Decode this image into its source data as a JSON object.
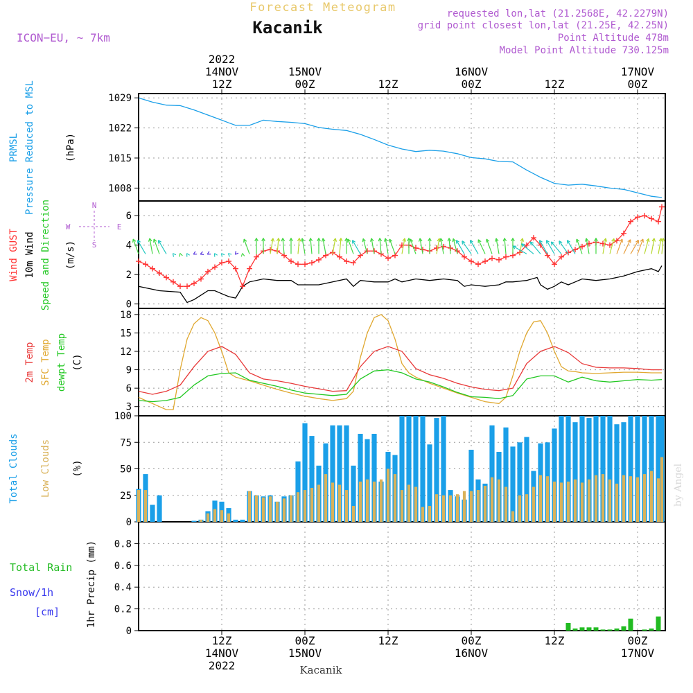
{
  "header": {
    "app_title": "Forecast Meteogram",
    "location": "Kacanik",
    "model": "ICON−EU, ~ 7km",
    "requested": "requested lon,lat (21.2568E, 42.2279N)",
    "grid_point": "grid point closest lon,lat (21.25E, 42.25N)",
    "point_altitude": "Point Altitude 478m",
    "model_altitude": "Model Point Altitude 730.125m",
    "footer_location": "Kacanik",
    "watermark": "by Angel"
  },
  "colors": {
    "pressure": "#1a9fe8",
    "gust": "#ff3333",
    "wind10m": "#000000",
    "temp2m": "#e83838",
    "sfc_temp": "#e0a830",
    "dewpt": "#22c822",
    "total_clouds": "#1a9fe8",
    "low_clouds": "#d9b25a",
    "rain": "#22bb22",
    "snow": "#3a3aee",
    "model_label": "#b05ad0"
  },
  "time_axis": {
    "top_labels": [
      {
        "hour": 12,
        "lines": [
          "2022",
          "14NOV",
          "12Z"
        ]
      },
      {
        "hour": 24,
        "lines": [
          "15NOV",
          "00Z"
        ]
      },
      {
        "hour": 36,
        "lines": [
          "12Z"
        ]
      },
      {
        "hour": 48,
        "lines": [
          "16NOV",
          "00Z"
        ]
      },
      {
        "hour": 60,
        "lines": [
          "12Z"
        ]
      },
      {
        "hour": 72,
        "lines": [
          "17NOV",
          "00Z"
        ]
      }
    ],
    "bottom_labels": [
      {
        "hour": 12,
        "lines": [
          "12Z",
          "14NOV",
          "2022"
        ]
      },
      {
        "hour": 24,
        "lines": [
          "00Z",
          "15NOV"
        ]
      },
      {
        "hour": 36,
        "lines": [
          "12Z"
        ]
      },
      {
        "hour": 48,
        "lines": [
          "00Z",
          "16NOV"
        ]
      },
      {
        "hour": 60,
        "lines": [
          "12Z"
        ]
      },
      {
        "hour": 72,
        "lines": [
          "00Z",
          "17NOV"
        ]
      }
    ]
  },
  "panels": {
    "pressure": {
      "ylabel_lines": [
        "PRMSL",
        "Pressure Reduced to MSL"
      ],
      "unit": "(hPa)",
      "ylim": [
        1005,
        1030
      ],
      "ticks": [
        1008,
        1015,
        1022,
        1029
      ]
    },
    "wind": {
      "ylabel_lines": [
        "Wind GUST",
        "10m Wind",
        "Speed and Direction"
      ],
      "unit": "(m/s)",
      "ylim": [
        -0.3,
        7
      ],
      "ticks": [
        0,
        2,
        4,
        6
      ],
      "compass": {
        "n": "N",
        "s": "S",
        "w": "W",
        "e": "E"
      }
    },
    "temp": {
      "ylabel_lines": [
        "2m Temp",
        "SFC Temp",
        "dewpt Temp"
      ],
      "unit": "(C)",
      "ylim": [
        1.5,
        19
      ],
      "ticks": [
        3,
        6,
        9,
        12,
        15,
        18
      ]
    },
    "clouds": {
      "ylabel_lines": [
        "Total Clouds",
        "Low Clouds"
      ],
      "unit": "(%)",
      "ylim": [
        0,
        100
      ],
      "ticks": [
        0,
        25,
        50,
        75,
        100
      ],
      "tick_labels": [
        "0",
        "25",
        "50",
        "75",
        "100"
      ]
    },
    "precip": {
      "ylabel_lines": [
        "Total Rain",
        "Snow/1h",
        "[cm]"
      ],
      "unit": "1hr Precip (mm)",
      "ylim": [
        0,
        1.0
      ],
      "ticks": [
        0,
        0.2,
        0.4,
        0.6,
        0.8
      ],
      "tick_labels": [
        "0",
        "0.2",
        "0.4",
        "0.6",
        "0.8"
      ]
    }
  },
  "chart_data": {
    "type": "line",
    "x_unit": "hours from 14NOV 00Z",
    "xlim": [
      0,
      76
    ],
    "pressure": {
      "x": [
        0,
        2,
        4,
        6,
        8,
        10,
        12,
        13,
        14,
        16,
        18,
        20,
        22,
        24,
        26,
        28,
        30,
        32,
        34,
        36,
        38,
        40,
        42,
        44,
        46,
        48,
        50,
        52,
        54,
        56,
        58,
        60,
        62,
        64,
        66,
        68,
        70,
        72,
        74,
        75.5
      ],
      "y": [
        1029,
        1028,
        1027.3,
        1027.2,
        1026.2,
        1025,
        1023.8,
        1023.2,
        1022.6,
        1022.6,
        1023.8,
        1023.5,
        1023.3,
        1023,
        1022.1,
        1021.7,
        1021.4,
        1020.5,
        1019.3,
        1018,
        1017.1,
        1016.5,
        1016.8,
        1016.6,
        1016,
        1015.1,
        1014.8,
        1014.2,
        1014.1,
        1012.2,
        1010.5,
        1009.1,
        1008.7,
        1008.9,
        1008.5,
        1008,
        1007.7,
        1006.9,
        1006.1,
        1005.8
      ]
    },
    "wind_10m": {
      "x": [
        0,
        3,
        6,
        7,
        8,
        9,
        10,
        11,
        12,
        13,
        14,
        15,
        16,
        18,
        20,
        22,
        23,
        24,
        26,
        28,
        30,
        31,
        32,
        34,
        36,
        37,
        38,
        40,
        42,
        44,
        46,
        47,
        48,
        50,
        52,
        53,
        54,
        56,
        57.5,
        58,
        59,
        60,
        61,
        62,
        63,
        64,
        66,
        68,
        70,
        72,
        74,
        75,
        75.5
      ],
      "y": [
        1.2,
        0.9,
        0.8,
        0.1,
        0.3,
        0.6,
        0.9,
        0.9,
        0.7,
        0.5,
        0.4,
        1.2,
        1.5,
        1.7,
        1.6,
        1.6,
        1.3,
        1.3,
        1.3,
        1.5,
        1.7,
        1.2,
        1.6,
        1.5,
        1.5,
        1.7,
        1.5,
        1.7,
        1.6,
        1.7,
        1.6,
        1.2,
        1.3,
        1.2,
        1.3,
        1.5,
        1.5,
        1.6,
        1.8,
        1.3,
        1.0,
        1.2,
        1.5,
        1.3,
        1.5,
        1.7,
        1.6,
        1.7,
        1.9,
        2.2,
        2.4,
        2.2,
        2.6
      ]
    },
    "wind_gust": {
      "x": [
        0,
        1,
        2,
        3,
        4,
        5,
        6,
        7,
        8,
        9,
        10,
        11,
        12,
        13,
        14,
        15,
        16,
        17,
        18,
        19,
        20,
        21,
        22,
        23,
        24,
        25,
        26,
        27,
        28,
        29,
        30,
        31,
        32,
        33,
        34,
        35,
        36,
        37,
        38,
        39,
        40,
        41,
        42,
        43,
        44,
        45,
        46,
        47,
        48,
        49,
        50,
        51,
        52,
        53,
        54,
        55,
        56,
        57,
        58,
        59,
        60,
        61,
        62,
        63,
        64,
        65,
        66,
        67,
        68,
        69,
        70,
        71,
        72,
        73,
        74,
        75,
        75.5
      ],
      "y": [
        2.9,
        2.7,
        2.4,
        2.1,
        1.8,
        1.5,
        1.2,
        1.2,
        1.4,
        1.7,
        2.2,
        2.5,
        2.8,
        2.9,
        2.4,
        1.2,
        2.4,
        3.2,
        3.6,
        3.7,
        3.6,
        3.3,
        2.9,
        2.7,
        2.7,
        2.8,
        3.0,
        3.3,
        3.5,
        3.2,
        2.9,
        2.8,
        3.3,
        3.6,
        3.6,
        3.4,
        3.1,
        3.3,
        4.0,
        4.0,
        3.8,
        3.7,
        3.6,
        3.8,
        3.9,
        3.8,
        3.6,
        3.2,
        2.9,
        2.7,
        2.9,
        3.1,
        3.0,
        3.2,
        3.3,
        3.5,
        4.0,
        4.5,
        4.0,
        3.3,
        2.7,
        3.2,
        3.5,
        3.7,
        3.9,
        4.1,
        4.2,
        4.1,
        4.0,
        4.3,
        4.8,
        5.6,
        5.9,
        6.0,
        5.8,
        5.6,
        6.6
      ]
    },
    "wind_direction_arrows": {
      "x": [
        0,
        1,
        2,
        3,
        4,
        5,
        6,
        7,
        8,
        9,
        10,
        11,
        12,
        13,
        14,
        15,
        16,
        17,
        18,
        19,
        20,
        21,
        22,
        23,
        24,
        25,
        26,
        27,
        28,
        29,
        30,
        31,
        32,
        33,
        34,
        35,
        36,
        37,
        38,
        39,
        40,
        41,
        42,
        43,
        44,
        45,
        46,
        47,
        48,
        49,
        50,
        51,
        52,
        53,
        54,
        55,
        56,
        57,
        58,
        59,
        60,
        61,
        62,
        63,
        64,
        65,
        66,
        67,
        68,
        69,
        70,
        71,
        72,
        73,
        74,
        75,
        75.5
      ],
      "dir_deg": [
        340,
        330,
        350,
        340,
        330,
        320,
        340,
        330,
        240,
        250,
        240,
        330,
        320,
        310,
        220,
        350,
        340,
        0,
        0,
        10,
        5,
        355,
        0,
        5,
        350,
        355,
        0,
        350,
        10,
        5,
        0,
        340,
        330,
        345,
        350,
        355,
        350,
        340,
        10,
        0,
        340,
        350,
        0,
        10,
        350,
        355,
        345,
        330,
        325,
        330,
        335,
        340,
        350,
        355,
        0,
        10,
        300,
        310,
        320,
        330,
        330,
        320,
        325,
        330,
        340,
        350,
        0,
        10,
        15,
        20,
        25,
        30,
        20,
        15,
        10,
        10,
        5
      ],
      "length": [
        4,
        4,
        4,
        4,
        4,
        3,
        3,
        3,
        3,
        3,
        3,
        3,
        3,
        3,
        3,
        3,
        4,
        4,
        4,
        4,
        4,
        4,
        4,
        4,
        4,
        4,
        4,
        4,
        4,
        4,
        4,
        4,
        4,
        4,
        4,
        4,
        4,
        4,
        4,
        4,
        4,
        4,
        4,
        4,
        4,
        4,
        4,
        4,
        4,
        4,
        4,
        4,
        4,
        4,
        4,
        4,
        4,
        4,
        4,
        4,
        4,
        4,
        4,
        4,
        4,
        4,
        4,
        4,
        4,
        4,
        4,
        4,
        4,
        4,
        4,
        4,
        4
      ]
    },
    "temp_2m": {
      "x": [
        0,
        2,
        4,
        6,
        8,
        10,
        12,
        14,
        16,
        18,
        20,
        22,
        24,
        26,
        28,
        30,
        32,
        34,
        36,
        38,
        40,
        42,
        44,
        46,
        48,
        50,
        52,
        54,
        56,
        58,
        60,
        62,
        64,
        66,
        68,
        70,
        72,
        74,
        75.5
      ],
      "y": [
        5.5,
        5.0,
        5.5,
        6.5,
        9.5,
        12,
        12.8,
        11.5,
        8.5,
        7.5,
        7.2,
        6.8,
        6.3,
        5.9,
        5.5,
        5.6,
        9.5,
        12,
        12.8,
        12,
        9.2,
        8.2,
        7.6,
        6.8,
        6.2,
        5.8,
        5.6,
        6.0,
        10.0,
        12.0,
        12.8,
        11.8,
        10.0,
        9.4,
        9.3,
        9.3,
        9.2,
        9.0,
        9.0
      ]
    },
    "temp_sfc": {
      "x": [
        0,
        2,
        4,
        5,
        6,
        7,
        8,
        9,
        10,
        11,
        12,
        13,
        14,
        15,
        16,
        18,
        20,
        22,
        24,
        26,
        28,
        30,
        31,
        32,
        33,
        34,
        35,
        36,
        37,
        38,
        39,
        40,
        42,
        44,
        46,
        48,
        50,
        52,
        53,
        54,
        55,
        56,
        57,
        58,
        59,
        60,
        61,
        62,
        63,
        64,
        66,
        68,
        70,
        72,
        74,
        75.5
      ],
      "y": [
        4.5,
        3.5,
        2.5,
        2.5,
        9,
        14,
        16.5,
        17.5,
        17,
        15,
        12,
        8.5,
        7.8,
        7.5,
        7.2,
        6.5,
        5.8,
        5.2,
        4.7,
        4.3,
        4.0,
        4.3,
        5.5,
        11,
        15,
        17.5,
        18,
        17,
        14,
        10,
        8.5,
        7.8,
        6.8,
        6.0,
        5.2,
        4.5,
        3.8,
        3.5,
        4.5,
        8,
        12,
        15,
        16.8,
        17,
        15,
        12,
        9.5,
        8.8,
        8.7,
        8.5,
        8.4,
        8.5,
        8.6,
        8.6,
        8.5,
        8.5
      ]
    },
    "dewpoint": {
      "x": [
        0,
        2,
        4,
        6,
        8,
        10,
        12,
        14,
        16,
        18,
        20,
        22,
        24,
        26,
        28,
        30,
        32,
        34,
        36,
        38,
        40,
        42,
        44,
        46,
        48,
        50,
        52,
        54,
        56,
        58,
        60,
        62,
        64,
        66,
        68,
        70,
        72,
        74,
        75.5
      ],
      "y": [
        4.0,
        3.8,
        4.0,
        4.5,
        6.5,
        8.0,
        8.4,
        8.5,
        7.3,
        6.8,
        6.3,
        5.7,
        5.2,
        5.0,
        4.8,
        5.0,
        7.5,
        8.8,
        9.0,
        8.5,
        7.5,
        7.0,
        6.2,
        5.3,
        4.6,
        4.5,
        4.3,
        4.8,
        7.5,
        8.0,
        8.0,
        7.0,
        7.8,
        7.2,
        7.0,
        7.2,
        7.4,
        7.3,
        7.4
      ]
    },
    "clouds_total": {
      "x": [
        0,
        1,
        2,
        3,
        4,
        5,
        6,
        7,
        8,
        9,
        10,
        11,
        12,
        13,
        14,
        15,
        16,
        17,
        18,
        19,
        20,
        21,
        22,
        23,
        24,
        25,
        26,
        27,
        28,
        29,
        30,
        31,
        32,
        33,
        34,
        35,
        36,
        37,
        38,
        39,
        40,
        41,
        42,
        43,
        44,
        45,
        46,
        47,
        48,
        49,
        50,
        51,
        52,
        53,
        54,
        55,
        56,
        57,
        58,
        59,
        60,
        61,
        62,
        63,
        64,
        65,
        66,
        67,
        68,
        69,
        70,
        71,
        72,
        73,
        74,
        75,
        75.5
      ],
      "y": [
        31,
        45,
        16,
        25,
        0,
        0,
        0,
        0,
        1,
        2,
        10,
        20,
        19,
        13,
        2,
        2,
        29,
        25,
        24,
        25,
        19,
        24,
        25,
        57,
        93,
        81,
        53,
        74,
        91,
        91,
        91,
        53,
        83,
        78,
        83,
        38,
        66,
        63,
        100,
        100,
        100,
        100,
        73,
        98,
        100,
        30,
        24,
        21,
        68,
        40,
        36,
        91,
        66,
        89,
        71,
        75,
        80,
        48,
        74,
        75,
        88,
        100,
        100,
        94,
        100,
        98,
        100,
        100,
        100,
        92,
        94,
        100,
        100,
        100,
        100,
        100,
        100
      ],
      "unit": "%"
    },
    "clouds_low": {
      "x": [
        0,
        1,
        2,
        3,
        4,
        5,
        6,
        7,
        8,
        9,
        10,
        11,
        12,
        13,
        14,
        15,
        16,
        17,
        18,
        19,
        20,
        21,
        22,
        23,
        24,
        25,
        26,
        27,
        28,
        29,
        30,
        31,
        32,
        33,
        34,
        35,
        36,
        37,
        38,
        39,
        40,
        41,
        42,
        43,
        44,
        45,
        46,
        47,
        48,
        49,
        50,
        51,
        52,
        53,
        54,
        55,
        56,
        57,
        58,
        59,
        60,
        61,
        62,
        63,
        64,
        65,
        66,
        67,
        68,
        69,
        70,
        71,
        72,
        73,
        74,
        75,
        75.5
      ],
      "y": [
        30,
        30,
        0,
        0,
        0,
        0,
        0,
        0,
        0,
        2,
        8,
        12,
        11,
        8,
        0,
        0,
        29,
        25,
        23,
        24,
        19,
        22,
        25,
        28,
        30,
        32,
        35,
        45,
        37,
        35,
        30,
        15,
        38,
        40,
        38,
        40,
        50,
        45,
        30,
        35,
        33,
        14,
        15,
        26,
        25,
        25,
        26,
        29,
        29,
        30,
        34,
        42,
        40,
        33,
        10,
        25,
        26,
        33,
        44,
        43,
        38,
        37,
        38,
        40,
        37,
        40,
        44,
        45,
        40,
        36,
        44,
        43,
        42,
        45,
        48,
        41,
        61
      ],
      "unit": "%"
    },
    "precip_rain": {
      "x": [
        62,
        63,
        64,
        65,
        66,
        67,
        68,
        69,
        70,
        71,
        72,
        73,
        74,
        75
      ],
      "y": [
        0.07,
        0.02,
        0.03,
        0.03,
        0.03,
        0.01,
        0.01,
        0.02,
        0.04,
        0.11,
        0.0,
        0.01,
        0.02,
        0.13
      ],
      "unit": "mm"
    }
  }
}
